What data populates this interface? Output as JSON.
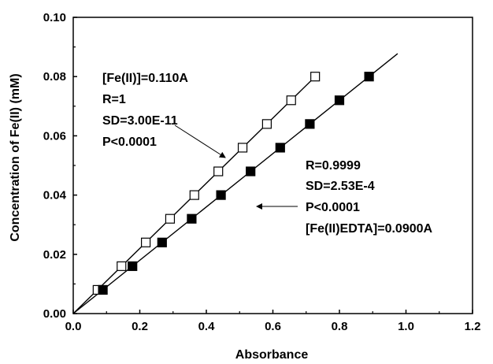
{
  "chart_data": {
    "type": "scatter",
    "title": "",
    "xlabel": "Absorbance",
    "ylabel": "Concentration of Fe(II) (mM)",
    "xlim": [
      0,
      1.2
    ],
    "ylim": [
      0,
      0.1
    ],
    "xticks": [
      0.0,
      0.2,
      0.4,
      0.6,
      0.8,
      1.0,
      1.2
    ],
    "xtick_labels": [
      "0.0",
      "0.2",
      "0.4",
      "0.6",
      "0.8",
      "1.0",
      "1.2"
    ],
    "yticks": [
      0.0,
      0.02,
      0.04,
      0.06,
      0.08,
      0.1
    ],
    "ytick_labels": [
      "0.00",
      "0.02",
      "0.04",
      "0.06",
      "0.08",
      "0.10"
    ],
    "grid": false,
    "series": [
      {
        "marker": "open-square",
        "color": "#000000",
        "x": [
          0.073,
          0.145,
          0.218,
          0.291,
          0.364,
          0.436,
          0.509,
          0.582,
          0.655,
          0.727
        ],
        "y": [
          0.008,
          0.016,
          0.024,
          0.032,
          0.04,
          0.048,
          0.056,
          0.064,
          0.072,
          0.08
        ],
        "fit": {
          "slope": 0.11,
          "intercept": 0,
          "x_range": [
            0,
            0.727
          ]
        },
        "annotation": [
          "[Fe(II)]=0.110A",
          "R=1",
          "SD=3.00E-11",
          "P<0.0001"
        ]
      },
      {
        "marker": "filled-square",
        "color": "#000000",
        "x": [
          0.089,
          0.178,
          0.267,
          0.356,
          0.444,
          0.533,
          0.622,
          0.711,
          0.8,
          0.889
        ],
        "y": [
          0.008,
          0.016,
          0.024,
          0.032,
          0.04,
          0.048,
          0.056,
          0.064,
          0.072,
          0.08
        ],
        "fit": {
          "slope": 0.09,
          "intercept": 0,
          "x_range": [
            0,
            0.975
          ]
        },
        "annotation": [
          "R=0.9999",
          "SD=2.53E-4",
          "P<0.0001",
          "[Fe(II)EDTA]=0.0900A"
        ]
      }
    ]
  }
}
